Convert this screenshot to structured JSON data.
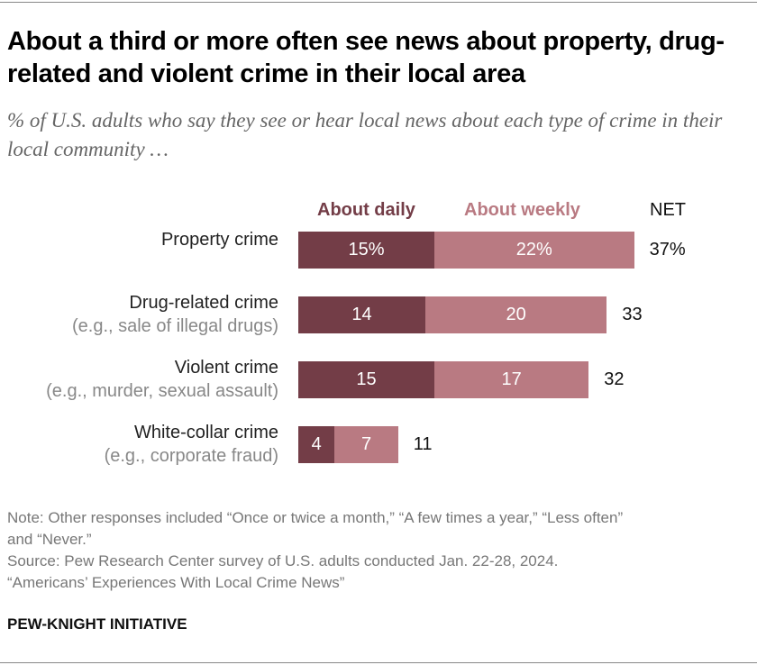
{
  "title": "About a third or more often see news about property, drug-related and violent crime in their local area",
  "subtitle": "% of U.S. adults who say they see or hear local news about each type of crime in their local community …",
  "chart_data": {
    "type": "bar",
    "orientation": "horizontal",
    "stacked": true,
    "categories": [
      {
        "label": "Property crime",
        "sublabel": ""
      },
      {
        "label": "Drug-related crime",
        "sublabel": "(e.g., sale of illegal drugs)"
      },
      {
        "label": "Violent crime",
        "sublabel": "(e.g., murder, sexual assault)"
      },
      {
        "label": "White-collar crime",
        "sublabel": "(e.g., corporate fraud)"
      }
    ],
    "series": [
      {
        "name": "About daily",
        "color": "#733d47",
        "values": [
          15,
          14,
          15,
          4
        ],
        "labels": [
          "15%",
          "14",
          "15",
          "4"
        ]
      },
      {
        "name": "About weekly",
        "color": "#b97a82",
        "values": [
          22,
          20,
          17,
          7
        ],
        "labels": [
          "22%",
          "20",
          "17",
          "7"
        ]
      }
    ],
    "net_header": "NET",
    "net": [
      37,
      33,
      32,
      11
    ],
    "net_labels": [
      "37%",
      "33",
      "32",
      "11"
    ]
  },
  "notes": [
    "Note: Other responses included “Once or twice a month,” “A few times a year,” “Less often”",
    "and “Never.”",
    "Source: Pew Research Center survey of U.S. adults conducted Jan. 22-28, 2024.",
    "“Americans’ Experiences With Local Crime News”"
  ],
  "brand": "PEW-KNIGHT INITIATIVE"
}
